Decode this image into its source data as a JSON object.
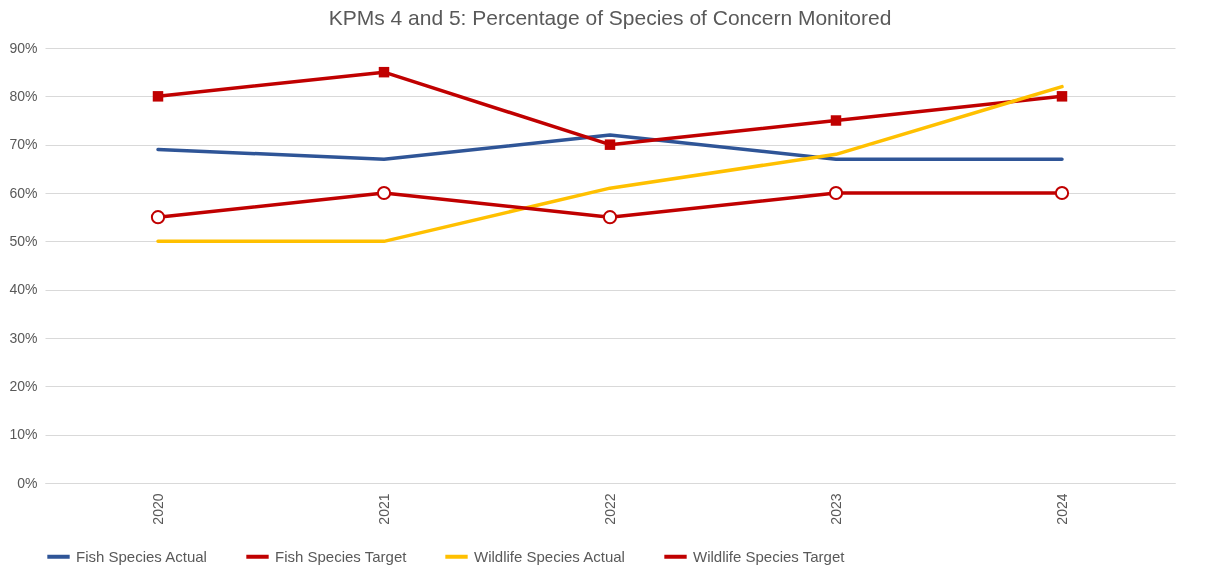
{
  "chart_data": {
    "type": "line",
    "title": "KPMs 4 and 5: Percentage of Species of Concern Monitored",
    "categories": [
      "2020",
      "2021",
      "2022",
      "2023",
      "2024"
    ],
    "series": [
      {
        "name": "Fish Species Actual",
        "color": "#2f5597",
        "marker": "none",
        "values": [
          69,
          67,
          72,
          67,
          67
        ]
      },
      {
        "name": "Fish Species Target",
        "color": "#c00000",
        "marker": "square",
        "values": [
          80,
          85,
          70,
          75,
          80
        ]
      },
      {
        "name": "Wildlife Species Actual",
        "color": "#ffc000",
        "marker": "none",
        "values": [
          50,
          50,
          61,
          68,
          82
        ]
      },
      {
        "name": "Wildlife Species Target",
        "color": "#c00000",
        "marker": "circle",
        "values": [
          55,
          60,
          55,
          60,
          60
        ]
      }
    ],
    "ylim": [
      0,
      90
    ],
    "yticks": [
      {
        "value": 0,
        "label": "0%"
      },
      {
        "value": 10,
        "label": "10%"
      },
      {
        "value": 20,
        "label": "20%"
      },
      {
        "value": 30,
        "label": "30%"
      },
      {
        "value": 40,
        "label": "40%"
      },
      {
        "value": 50,
        "label": "50%"
      },
      {
        "value": 60,
        "label": "60%"
      },
      {
        "value": 70,
        "label": "70%"
      },
      {
        "value": 80,
        "label": "80%"
      },
      {
        "value": 90,
        "label": "90%"
      }
    ],
    "grid": "y",
    "legend": "bottom",
    "line_style": "solid"
  }
}
